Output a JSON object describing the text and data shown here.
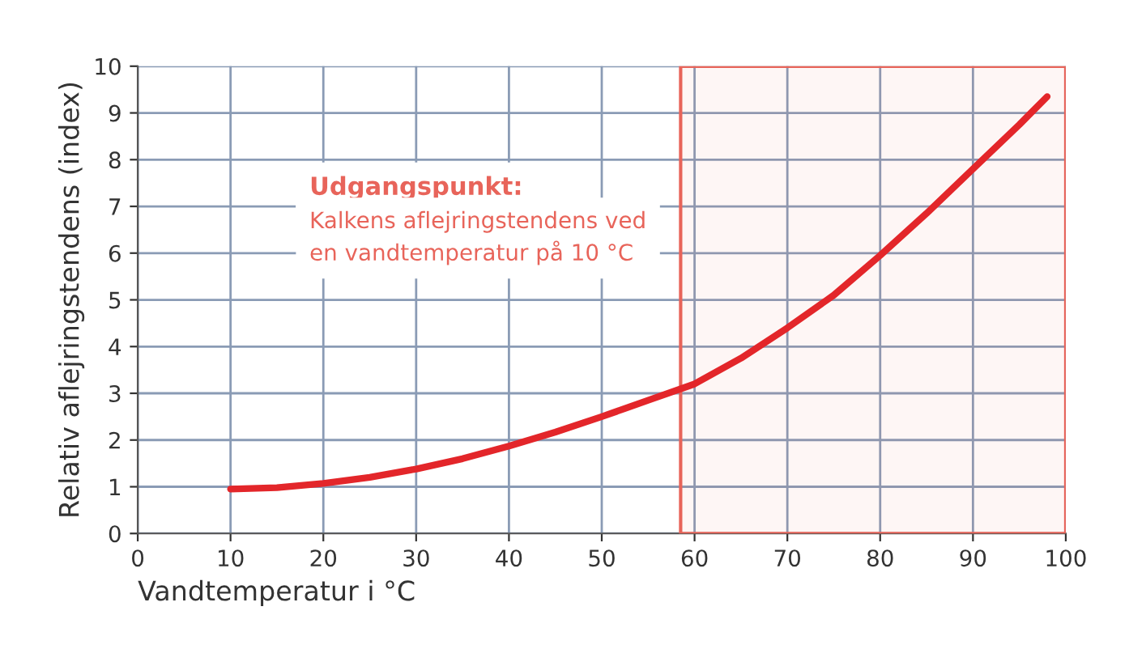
{
  "chart_data": {
    "type": "line",
    "xlabel": "Vandtemperatur i °C",
    "ylabel": "Relativ aflejringstendens (index)",
    "x": [
      10,
      15,
      20,
      25,
      30,
      35,
      40,
      45,
      50,
      55,
      60,
      65,
      70,
      75,
      80,
      85,
      90,
      95,
      98
    ],
    "series": [
      {
        "color": "#e3262a",
        "values": [
          0.95,
          0.98,
          1.07,
          1.2,
          1.38,
          1.6,
          1.87,
          2.17,
          2.5,
          2.85,
          3.2,
          3.75,
          4.4,
          5.1,
          5.95,
          6.85,
          7.8,
          8.75,
          9.35
        ]
      }
    ],
    "xlim": [
      0,
      100
    ],
    "ylim": [
      0,
      10
    ],
    "xticks": [
      0,
      10,
      20,
      30,
      40,
      50,
      60,
      70,
      80,
      90,
      100
    ],
    "yticks": [
      0,
      1,
      2,
      3,
      4,
      5,
      6,
      7,
      8,
      9,
      10
    ],
    "grid": true,
    "marker": "none",
    "line_style": "solid",
    "bands": [
      {
        "axis": "x",
        "from": 58.5,
        "to": 100,
        "color": "#e8645a"
      }
    ],
    "annotations": [
      "Udgangspunkt:",
      "Kalkens aflejringstendens ved\nen vandtemperatur på 10 °C"
    ]
  }
}
